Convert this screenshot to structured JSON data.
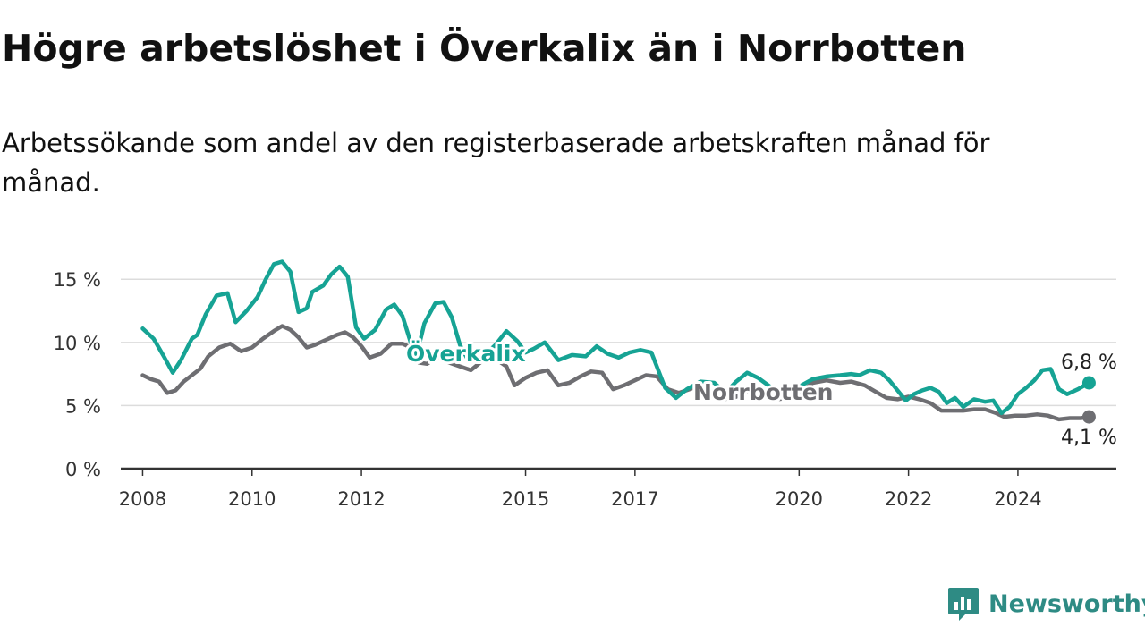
{
  "title": "Högre arbetslöshet i Överkalix än i Norrbotten",
  "subtitle": "Arbetssökande som andel av den registerbaserade arbetskraften månad för månad.",
  "brand": {
    "name": "Newsworthy",
    "icon": "newsworthy-logo-icon",
    "color": "#2e8b84"
  },
  "chart_data": {
    "type": "line",
    "x_unit": "year",
    "xlim": [
      2007.6,
      2025.8
    ],
    "ylim": [
      0,
      17
    ],
    "x_ticks": [
      {
        "value": 2008,
        "label": "2008"
      },
      {
        "value": 2010,
        "label": "2010"
      },
      {
        "value": 2012,
        "label": "2012"
      },
      {
        "value": 2015,
        "label": "2015"
      },
      {
        "value": 2017,
        "label": "2017"
      },
      {
        "value": 2020,
        "label": "2020"
      },
      {
        "value": 2022,
        "label": "2022"
      },
      {
        "value": 2024,
        "label": "2024"
      }
    ],
    "y_ticks": [
      {
        "value": 0,
        "label": "0 %"
      },
      {
        "value": 5,
        "label": "5 %"
      },
      {
        "value": 10,
        "label": "10 %"
      },
      {
        "value": 15,
        "label": "15 %"
      }
    ],
    "grid": "horizontal",
    "series": [
      {
        "name": "Överkalix",
        "color": "#16a394",
        "end_label": "6,8 %",
        "points": [
          [
            2008.0,
            11.1
          ],
          [
            2008.2,
            10.3
          ],
          [
            2008.4,
            8.8
          ],
          [
            2008.55,
            7.6
          ],
          [
            2008.7,
            8.6
          ],
          [
            2008.9,
            10.3
          ],
          [
            2009.0,
            10.6
          ],
          [
            2009.15,
            12.2
          ],
          [
            2009.35,
            13.7
          ],
          [
            2009.55,
            13.9
          ],
          [
            2009.7,
            11.6
          ],
          [
            2009.9,
            12.5
          ],
          [
            2010.1,
            13.6
          ],
          [
            2010.25,
            15.0
          ],
          [
            2010.4,
            16.2
          ],
          [
            2010.55,
            16.4
          ],
          [
            2010.7,
            15.6
          ],
          [
            2010.85,
            12.4
          ],
          [
            2011.0,
            12.7
          ],
          [
            2011.1,
            14.0
          ],
          [
            2011.3,
            14.5
          ],
          [
            2011.45,
            15.4
          ],
          [
            2011.6,
            16.0
          ],
          [
            2011.75,
            15.2
          ],
          [
            2011.9,
            11.2
          ],
          [
            2012.05,
            10.3
          ],
          [
            2012.25,
            11.0
          ],
          [
            2012.45,
            12.6
          ],
          [
            2012.6,
            13.0
          ],
          [
            2012.75,
            12.1
          ],
          [
            2012.9,
            10.0
          ],
          [
            2013.0,
            8.8
          ],
          [
            2013.15,
            11.5
          ],
          [
            2013.35,
            13.1
          ],
          [
            2013.5,
            13.2
          ],
          [
            2013.65,
            12.0
          ],
          [
            2013.8,
            9.8
          ],
          [
            2013.95,
            8.6
          ],
          [
            2014.2,
            8.8
          ],
          [
            2014.45,
            9.8
          ],
          [
            2014.65,
            10.9
          ],
          [
            2014.85,
            10.1
          ],
          [
            2015.0,
            9.2
          ],
          [
            2015.15,
            9.5
          ],
          [
            2015.35,
            10.0
          ],
          [
            2015.6,
            8.6
          ],
          [
            2015.85,
            9.0
          ],
          [
            2016.1,
            8.9
          ],
          [
            2016.3,
            9.7
          ],
          [
            2016.5,
            9.1
          ],
          [
            2016.7,
            8.8
          ],
          [
            2016.9,
            9.2
          ],
          [
            2017.1,
            9.4
          ],
          [
            2017.3,
            9.2
          ],
          [
            2017.55,
            6.4
          ],
          [
            2017.75,
            5.6
          ],
          [
            2017.95,
            6.3
          ],
          [
            2018.2,
            6.9
          ],
          [
            2018.45,
            6.8
          ],
          [
            2018.65,
            6.0
          ],
          [
            2018.85,
            6.9
          ],
          [
            2019.05,
            7.6
          ],
          [
            2019.25,
            7.2
          ],
          [
            2019.5,
            6.4
          ],
          [
            2019.75,
            6.1
          ],
          [
            2020.0,
            6.5
          ],
          [
            2020.25,
            7.1
          ],
          [
            2020.5,
            7.3
          ],
          [
            2020.75,
            7.4
          ],
          [
            2020.95,
            7.5
          ],
          [
            2021.1,
            7.4
          ],
          [
            2021.3,
            7.8
          ],
          [
            2021.5,
            7.6
          ],
          [
            2021.65,
            7.0
          ],
          [
            2021.8,
            6.2
          ],
          [
            2021.95,
            5.4
          ],
          [
            2022.1,
            5.9
          ],
          [
            2022.25,
            6.2
          ],
          [
            2022.4,
            6.4
          ],
          [
            2022.55,
            6.1
          ],
          [
            2022.7,
            5.2
          ],
          [
            2022.85,
            5.6
          ],
          [
            2023.0,
            4.9
          ],
          [
            2023.2,
            5.5
          ],
          [
            2023.4,
            5.3
          ],
          [
            2023.55,
            5.4
          ],
          [
            2023.7,
            4.4
          ],
          [
            2023.85,
            4.9
          ],
          [
            2024.0,
            5.9
          ],
          [
            2024.15,
            6.4
          ],
          [
            2024.3,
            7.0
          ],
          [
            2024.45,
            7.8
          ],
          [
            2024.6,
            7.9
          ],
          [
            2024.75,
            6.3
          ],
          [
            2024.9,
            5.9
          ],
          [
            2025.1,
            6.3
          ],
          [
            2025.3,
            6.8
          ]
        ]
      },
      {
        "name": "Norrbotten",
        "color": "#6e6e72",
        "end_label": "4,1 %",
        "points": [
          [
            2008.0,
            7.4
          ],
          [
            2008.15,
            7.1
          ],
          [
            2008.3,
            6.9
          ],
          [
            2008.45,
            6.0
          ],
          [
            2008.6,
            6.2
          ],
          [
            2008.75,
            6.9
          ],
          [
            2008.9,
            7.4
          ],
          [
            2009.05,
            7.9
          ],
          [
            2009.2,
            8.9
          ],
          [
            2009.4,
            9.6
          ],
          [
            2009.6,
            9.9
          ],
          [
            2009.8,
            9.3
          ],
          [
            2010.0,
            9.6
          ],
          [
            2010.2,
            10.3
          ],
          [
            2010.4,
            10.9
          ],
          [
            2010.55,
            11.3
          ],
          [
            2010.7,
            11.0
          ],
          [
            2010.85,
            10.4
          ],
          [
            2011.0,
            9.6
          ],
          [
            2011.15,
            9.8
          ],
          [
            2011.35,
            10.2
          ],
          [
            2011.55,
            10.6
          ],
          [
            2011.7,
            10.8
          ],
          [
            2011.85,
            10.4
          ],
          [
            2012.0,
            9.7
          ],
          [
            2012.15,
            8.8
          ],
          [
            2012.35,
            9.1
          ],
          [
            2012.55,
            9.9
          ],
          [
            2012.75,
            9.9
          ],
          [
            2012.9,
            9.6
          ],
          [
            2013.05,
            8.4
          ],
          [
            2013.2,
            8.3
          ],
          [
            2013.4,
            8.9
          ],
          [
            2013.6,
            8.4
          ],
          [
            2013.8,
            8.1
          ],
          [
            2014.0,
            7.8
          ],
          [
            2014.2,
            8.5
          ],
          [
            2014.45,
            8.7
          ],
          [
            2014.65,
            8.1
          ],
          [
            2014.8,
            6.6
          ],
          [
            2015.0,
            7.2
          ],
          [
            2015.2,
            7.6
          ],
          [
            2015.4,
            7.8
          ],
          [
            2015.6,
            6.6
          ],
          [
            2015.8,
            6.8
          ],
          [
            2016.0,
            7.3
          ],
          [
            2016.2,
            7.7
          ],
          [
            2016.4,
            7.6
          ],
          [
            2016.6,
            6.3
          ],
          [
            2016.8,
            6.6
          ],
          [
            2017.0,
            7.0
          ],
          [
            2017.2,
            7.4
          ],
          [
            2017.4,
            7.3
          ],
          [
            2017.6,
            6.3
          ],
          [
            2017.8,
            6.0
          ],
          [
            2018.0,
            6.3
          ],
          [
            2018.2,
            6.6
          ],
          [
            2018.4,
            6.2
          ],
          [
            2018.6,
            5.5
          ],
          [
            2018.8,
            5.6
          ],
          [
            2019.0,
            6.0
          ],
          [
            2019.2,
            6.4
          ],
          [
            2019.4,
            6.0
          ],
          [
            2019.6,
            5.5
          ],
          [
            2019.8,
            5.6
          ],
          [
            2020.0,
            6.0
          ],
          [
            2020.25,
            6.8
          ],
          [
            2020.5,
            7.0
          ],
          [
            2020.75,
            6.8
          ],
          [
            2020.95,
            6.9
          ],
          [
            2021.2,
            6.6
          ],
          [
            2021.4,
            6.1
          ],
          [
            2021.6,
            5.6
          ],
          [
            2021.8,
            5.5
          ],
          [
            2022.0,
            5.7
          ],
          [
            2022.2,
            5.5
          ],
          [
            2022.4,
            5.2
          ],
          [
            2022.6,
            4.6
          ],
          [
            2022.8,
            4.6
          ],
          [
            2023.0,
            4.6
          ],
          [
            2023.2,
            4.7
          ],
          [
            2023.4,
            4.7
          ],
          [
            2023.6,
            4.4
          ],
          [
            2023.75,
            4.1
          ],
          [
            2023.95,
            4.2
          ],
          [
            2024.15,
            4.2
          ],
          [
            2024.35,
            4.3
          ],
          [
            2024.55,
            4.2
          ],
          [
            2024.75,
            3.9
          ],
          [
            2024.95,
            4.0
          ],
          [
            2025.15,
            4.0
          ],
          [
            2025.3,
            4.1
          ]
        ]
      }
    ]
  }
}
